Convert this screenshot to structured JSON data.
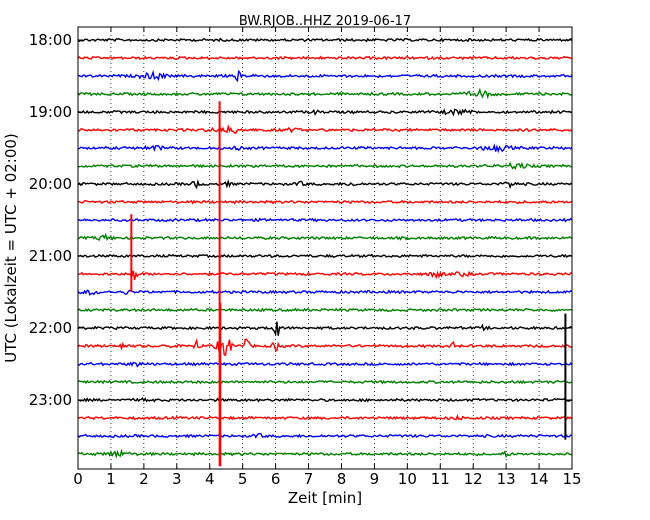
{
  "chart_data": {
    "type": "line",
    "title": "BW.RJOB..HHZ 2019-06-17",
    "xlabel": "Zeit  [min]",
    "ylabel": "UTC (Lokalzeit = UTC + 02:00)",
    "xlim": [
      0,
      15
    ],
    "x_ticks": [
      "0",
      "1",
      "2",
      "3",
      "4",
      "5",
      "6",
      "7",
      "8",
      "9",
      "10",
      "11",
      "12",
      "13",
      "14",
      "15"
    ],
    "y_ticks": [
      "18:00",
      "19:00",
      "20:00",
      "21:00",
      "22:00",
      "23:00"
    ],
    "trace_start_hours": [
      18.0,
      18.25,
      18.5,
      18.75,
      19.0,
      19.25,
      19.5,
      19.75,
      20.0,
      20.25,
      20.5,
      20.75,
      21.0,
      21.25,
      21.5,
      21.75,
      22.0,
      22.25,
      22.5,
      22.75,
      23.0,
      23.25,
      23.5,
      23.75
    ],
    "series_colors": [
      "#000000",
      "#ff0000",
      "#0000ff",
      "#008000"
    ],
    "grid": "vertical-dotted",
    "events": [
      {
        "trace": 2,
        "x": 2.0,
        "amp": 3.5,
        "width": 0.12
      },
      {
        "trace": 2,
        "x": 2.35,
        "amp": 3.5,
        "width": 0.15
      },
      {
        "trace": 2,
        "x": 2.6,
        "amp": 2.2,
        "width": 0.08
      },
      {
        "trace": 2,
        "x": 4.85,
        "amp": 4.0,
        "width": 0.1
      },
      {
        "trace": 2,
        "x": 5.4,
        "amp": 3.0,
        "width": 0.08
      },
      {
        "trace": 3,
        "x": 12.2,
        "amp": 3.0,
        "width": 0.35
      },
      {
        "trace": 4,
        "x": 11.5,
        "amp": 2.0,
        "width": 0.4
      },
      {
        "trace": 4,
        "x": 7.2,
        "amp": 1.5,
        "width": 0.1
      },
      {
        "trace": 5,
        "x": 4.6,
        "amp": 2.5,
        "width": 0.5
      },
      {
        "trace": 5,
        "x": 6.5,
        "amp": 1.2,
        "width": 0.2
      },
      {
        "trace": 6,
        "x": 2.3,
        "amp": 1.5,
        "width": 0.3
      },
      {
        "trace": 6,
        "x": 4.8,
        "amp": 2.5,
        "width": 0.1
      },
      {
        "trace": 6,
        "x": 12.7,
        "amp": 2.5,
        "width": 0.4
      },
      {
        "trace": 7,
        "x": 13.3,
        "amp": 2.5,
        "width": 0.3
      },
      {
        "trace": 8,
        "x": 3.6,
        "amp": 2.5,
        "width": 0.15
      },
      {
        "trace": 8,
        "x": 4.5,
        "amp": 2.0,
        "width": 0.12
      },
      {
        "trace": 8,
        "x": 6.8,
        "amp": 1.5,
        "width": 0.15
      },
      {
        "trace": 8,
        "x": 8.3,
        "amp": 1.5,
        "width": 0.15
      },
      {
        "trace": 8,
        "x": 13.1,
        "amp": 3.0,
        "width": 0.15
      },
      {
        "trace": 11,
        "x": 0.8,
        "amp": 2.5,
        "width": 0.2
      },
      {
        "trace": 13,
        "x": 10.9,
        "amp": 2.5,
        "width": 0.2
      },
      {
        "trace": 13,
        "x": 11.7,
        "amp": 1.5,
        "width": 0.2
      },
      {
        "trace": 13,
        "x": 1.7,
        "amp": 8.0,
        "width": 0.08
      },
      {
        "trace": 14,
        "x": 0.4,
        "amp": 2.0,
        "width": 0.2
      },
      {
        "trace": 14,
        "x": 1.5,
        "amp": 1.5,
        "width": 0.12
      },
      {
        "trace": 16,
        "x": 6.0,
        "amp": 15.0,
        "width": 0.09
      },
      {
        "trace": 16,
        "x": 12.3,
        "amp": 2.0,
        "width": 0.05
      },
      {
        "trace": 17,
        "x": 1.3,
        "amp": 5.0,
        "width": 0.06
      },
      {
        "trace": 17,
        "x": 2.8,
        "amp": 3.0,
        "width": 0.05
      },
      {
        "trace": 17,
        "x": 3.6,
        "amp": 5.0,
        "width": 0.08
      },
      {
        "trace": 17,
        "x": 4.45,
        "amp": 10.0,
        "width": 0.2
      },
      {
        "trace": 17,
        "x": 5.1,
        "amp": 6.0,
        "width": 0.1
      },
      {
        "trace": 17,
        "x": 6.0,
        "amp": 6.0,
        "width": 0.08
      },
      {
        "trace": 17,
        "x": 11.4,
        "amp": 3.0,
        "width": 0.05
      },
      {
        "trace": 18,
        "x": 1.8,
        "amp": 1.5,
        "width": 0.2
      },
      {
        "trace": 20,
        "x": 2.1,
        "amp": 1.5,
        "width": 0.15
      },
      {
        "trace": 21,
        "x": 11.5,
        "amp": 1.2,
        "width": 0.2
      },
      {
        "trace": 22,
        "x": 5.5,
        "amp": 1.2,
        "width": 0.15
      },
      {
        "trace": 23,
        "x": 1.2,
        "amp": 2.5,
        "width": 0.3
      },
      {
        "trace": 23,
        "x": 13.0,
        "amp": 2.5,
        "width": 0.08
      }
    ],
    "spikes": [
      {
        "x": 4.3,
        "trace": 5,
        "top_hour": 18.85,
        "bottom_hour": 23.92,
        "color": "#ff0000"
      },
      {
        "x": 1.62,
        "trace": 13,
        "top_hour": 20.42,
        "bottom_hour": 21.5,
        "color": "#ff0000"
      },
      {
        "x": 4.32,
        "trace": 17,
        "top_hour": 21.65,
        "bottom_hour": 23.92,
        "color": "#ff0000"
      },
      {
        "x": 14.8,
        "trace": 20,
        "top_hour": 21.8,
        "bottom_hour": 23.55,
        "color": "#000000"
      }
    ]
  }
}
